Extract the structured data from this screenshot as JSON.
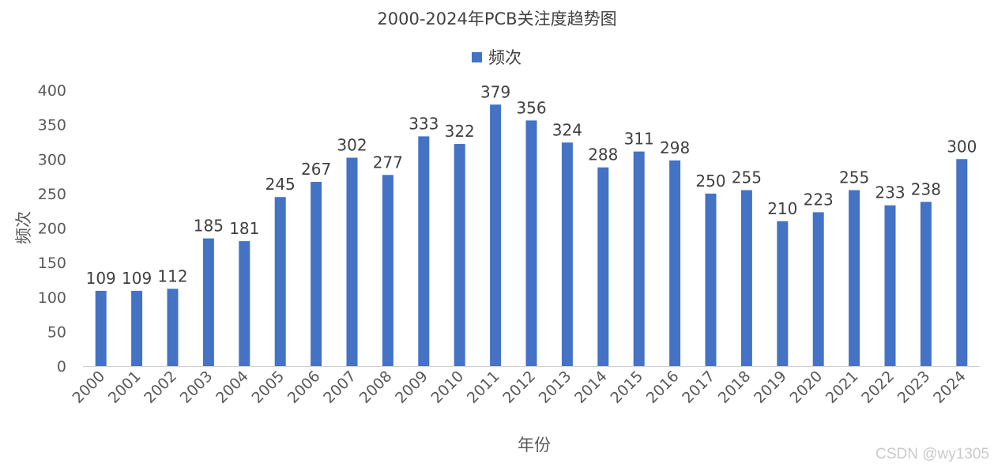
{
  "chart_data": {
    "type": "bar",
    "title": "2000-2024年PCB关注度趋势图",
    "xlabel": "年份",
    "ylabel": "频次",
    "ylim": [
      0,
      400
    ],
    "yticks": [
      0,
      50,
      100,
      150,
      200,
      250,
      300,
      350,
      400
    ],
    "grid": false,
    "legend_position": "top-center",
    "categories": [
      "2000",
      "2001",
      "2002",
      "2003",
      "2004",
      "2005",
      "2006",
      "2007",
      "2008",
      "2009",
      "2010",
      "2011",
      "2012",
      "2013",
      "2014",
      "2015",
      "2016",
      "2017",
      "2018",
      "2019",
      "2020",
      "2021",
      "2022",
      "2023",
      "2024"
    ],
    "series": [
      {
        "name": "频次",
        "color": "#4472c4",
        "values": [
          109,
          109,
          112,
          185,
          181,
          245,
          267,
          302,
          277,
          333,
          322,
          379,
          356,
          324,
          288,
          311,
          298,
          250,
          255,
          210,
          223,
          255,
          233,
          238,
          300
        ]
      }
    ],
    "data_labels": true
  },
  "watermark": "CSDN @wy1305"
}
